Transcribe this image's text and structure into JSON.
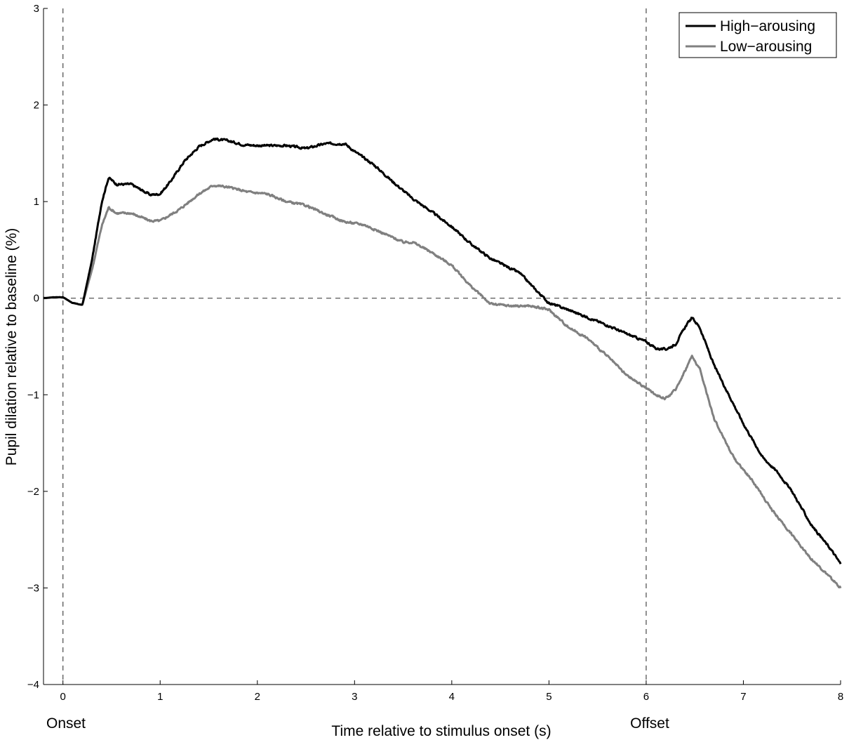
{
  "chart_data": {
    "type": "line",
    "title": "",
    "xlabel": "Time relative to stimulus onset (s)",
    "ylabel": "Pupil dilation relative to baseline (%)",
    "xlim": [
      -0.2,
      8
    ],
    "ylim": [
      -4,
      3
    ],
    "xticks": [
      0,
      1,
      2,
      3,
      4,
      5,
      6,
      7,
      8
    ],
    "yticks": [
      -4,
      -3,
      -2,
      -1,
      0,
      1,
      2,
      3
    ],
    "xtick_labels": [
      "0",
      "1",
      "2",
      "3",
      "4",
      "5",
      "6",
      "7",
      "8"
    ],
    "ytick_labels": [
      "−4",
      "−3",
      "−2",
      "−1",
      "0",
      "1",
      "2",
      "3"
    ],
    "grid": false,
    "legend_position": "top-right",
    "reference_lines": [
      {
        "orientation": "horizontal",
        "value": 0,
        "style": "dashed"
      },
      {
        "orientation": "vertical",
        "value": 0,
        "style": "dashed",
        "label": "Onset"
      },
      {
        "orientation": "vertical",
        "value": 6,
        "style": "dashed",
        "label": "Offset"
      }
    ],
    "series": [
      {
        "name": "High−arousing",
        "color": "#000000",
        "x": [
          -0.2,
          -0.1,
          0.0,
          0.1,
          0.2,
          0.3,
          0.4,
          0.47,
          0.55,
          0.7,
          0.9,
          1.0,
          1.1,
          1.25,
          1.4,
          1.55,
          1.7,
          1.85,
          2.0,
          2.3,
          2.5,
          2.7,
          2.9,
          3.0,
          3.2,
          3.4,
          3.6,
          3.8,
          4.0,
          4.2,
          4.4,
          4.6,
          4.7,
          4.85,
          5.0,
          5.2,
          5.4,
          5.6,
          5.8,
          6.0,
          6.1,
          6.2,
          6.3,
          6.4,
          6.47,
          6.55,
          6.7,
          6.9,
          7.0,
          7.2,
          7.35,
          7.5,
          7.7,
          7.9,
          8.0
        ],
        "y": [
          0.0,
          0.01,
          0.01,
          -0.05,
          -0.07,
          0.4,
          1.0,
          1.25,
          1.18,
          1.18,
          1.07,
          1.08,
          1.2,
          1.42,
          1.57,
          1.65,
          1.63,
          1.59,
          1.58,
          1.58,
          1.55,
          1.6,
          1.6,
          1.52,
          1.38,
          1.2,
          1.03,
          0.89,
          0.74,
          0.56,
          0.41,
          0.31,
          0.26,
          0.1,
          -0.05,
          -0.12,
          -0.2,
          -0.28,
          -0.37,
          -0.45,
          -0.52,
          -0.53,
          -0.48,
          -0.3,
          -0.2,
          -0.3,
          -0.7,
          -1.1,
          -1.3,
          -1.65,
          -1.8,
          -2.0,
          -2.35,
          -2.6,
          -2.75
        ]
      },
      {
        "name": "Low−arousing",
        "color": "#808080",
        "x": [
          -0.2,
          -0.1,
          0.0,
          0.1,
          0.2,
          0.3,
          0.4,
          0.47,
          0.55,
          0.7,
          0.9,
          1.0,
          1.2,
          1.4,
          1.55,
          1.7,
          1.9,
          2.1,
          2.3,
          2.5,
          2.7,
          2.9,
          3.1,
          3.3,
          3.5,
          3.6,
          3.8,
          4.0,
          4.2,
          4.4,
          4.6,
          4.8,
          5.0,
          5.2,
          5.4,
          5.6,
          5.8,
          6.0,
          6.1,
          6.2,
          6.3,
          6.4,
          6.47,
          6.55,
          6.7,
          6.9,
          7.1,
          7.3,
          7.5,
          7.7,
          7.9,
          8.0
        ],
        "y": [
          0.0,
          0.01,
          0.01,
          -0.05,
          -0.07,
          0.3,
          0.75,
          0.94,
          0.88,
          0.88,
          0.8,
          0.8,
          0.92,
          1.08,
          1.17,
          1.15,
          1.1,
          1.08,
          1.0,
          0.96,
          0.87,
          0.79,
          0.76,
          0.67,
          0.58,
          0.58,
          0.47,
          0.34,
          0.12,
          -0.06,
          -0.08,
          -0.08,
          -0.12,
          -0.3,
          -0.42,
          -0.6,
          -0.8,
          -0.93,
          -1.0,
          -1.04,
          -0.95,
          -0.75,
          -0.6,
          -0.73,
          -1.25,
          -1.65,
          -1.9,
          -2.2,
          -2.45,
          -2.7,
          -2.9,
          -3.0
        ]
      }
    ],
    "annotations": [
      {
        "text": "Onset",
        "x": 0
      },
      {
        "text": "Offset",
        "x": 6
      }
    ]
  }
}
